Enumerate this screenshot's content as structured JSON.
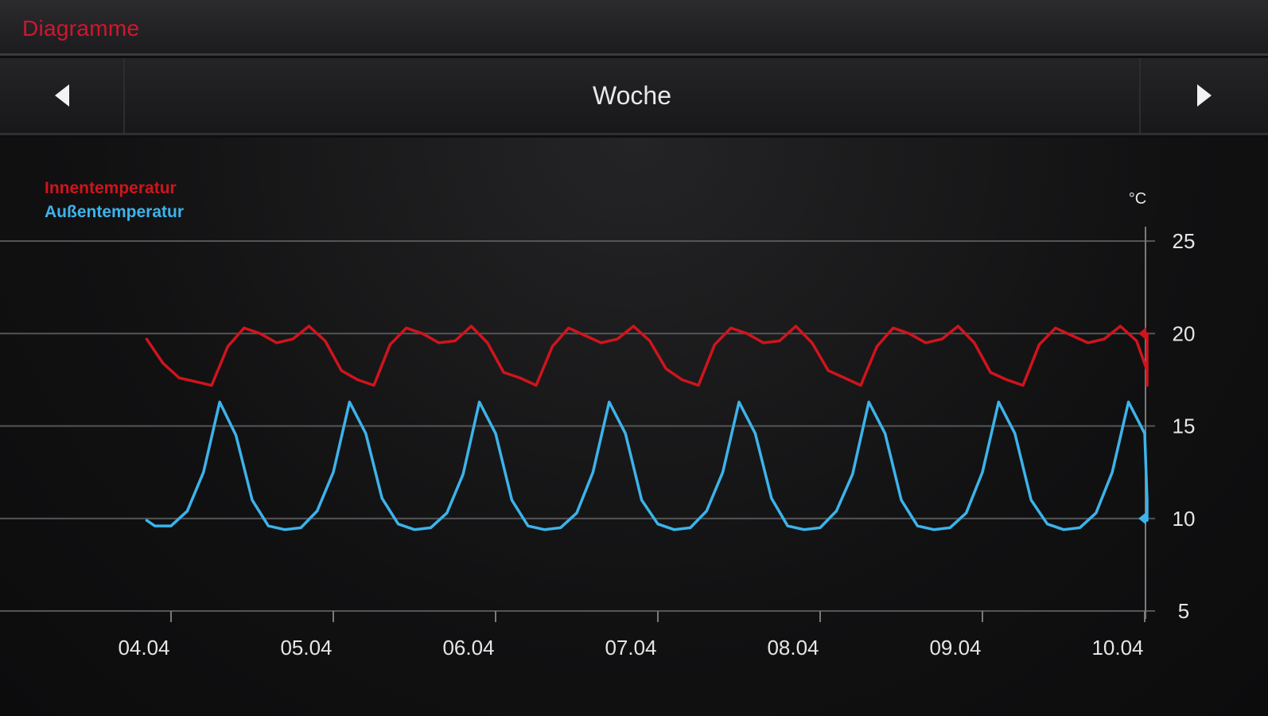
{
  "header": {
    "title": "Diagramme"
  },
  "nav": {
    "period_label": "Woche",
    "prev_icon": "chevron-left-icon",
    "next_icon": "chevron-right-icon"
  },
  "colors": {
    "accent": "#d1162f",
    "inside": "#d0141c",
    "outside": "#3db3ea"
  },
  "chart_data": {
    "type": "line",
    "unit_label": "°C",
    "x_tick_labels": [
      "04.04",
      "05.04",
      "06.04",
      "07.04",
      "08.04",
      "09.04",
      "10.04"
    ],
    "y_ticks": [
      5,
      10,
      15,
      20,
      25
    ],
    "ylim": [
      5,
      25
    ],
    "xlim": [
      -0.15,
      6.3
    ],
    "grid": true,
    "legend_position": "top-left",
    "series": [
      {
        "name": "Innentemperatur",
        "color": "#d0141c",
        "x": [
          -0.15,
          -0.05,
          0.05,
          0.15,
          0.25,
          0.35,
          0.45,
          0.55,
          0.65,
          0.75,
          0.85,
          0.95,
          1.05,
          1.15,
          1.25,
          1.35,
          1.45,
          1.55,
          1.65,
          1.75,
          1.85,
          1.95,
          2.05,
          2.15,
          2.25,
          2.35,
          2.45,
          2.55,
          2.65,
          2.75,
          2.85,
          2.95,
          3.05,
          3.15,
          3.25,
          3.35,
          3.45,
          3.55,
          3.65,
          3.75,
          3.85,
          3.95,
          4.05,
          4.15,
          4.25,
          4.35,
          4.45,
          4.55,
          4.65,
          4.75,
          4.85,
          4.95,
          5.05,
          5.15,
          5.25,
          5.35,
          5.45,
          5.55,
          5.65,
          5.75,
          5.85,
          5.95,
          6.05,
          6.15,
          6.25,
          6.3
        ],
        "values": [
          19.7,
          18.4,
          17.6,
          17.4,
          17.2,
          19.3,
          20.3,
          20.0,
          19.5,
          19.7,
          20.4,
          19.6,
          18.0,
          17.5,
          17.2,
          19.4,
          20.3,
          20.0,
          19.5,
          19.6,
          20.4,
          19.5,
          17.9,
          17.6,
          17.2,
          19.3,
          20.3,
          19.9,
          19.5,
          19.7,
          20.4,
          19.6,
          18.1,
          17.5,
          17.2,
          19.4,
          20.3,
          20.0,
          19.5,
          19.6,
          20.4,
          19.5,
          18.0,
          17.6,
          17.2,
          19.3,
          20.3,
          20.0,
          19.5,
          19.7,
          20.4,
          19.5,
          17.9,
          17.5,
          17.2,
          19.4,
          20.3,
          19.9,
          19.5,
          19.7,
          20.4,
          19.6,
          18.0,
          17.5,
          17.2,
          20.0
        ]
      },
      {
        "name": "Außentemperatur",
        "color": "#3db3ea",
        "x": [
          -0.15,
          -0.1,
          0.0,
          0.1,
          0.2,
          0.3,
          0.4,
          0.5,
          0.6,
          0.7,
          0.8,
          0.9,
          1.0,
          1.1,
          1.2,
          1.3,
          1.4,
          1.5,
          1.6,
          1.7,
          1.8,
          1.9,
          2.0,
          2.1,
          2.2,
          2.3,
          2.4,
          2.5,
          2.6,
          2.7,
          2.8,
          2.9,
          3.0,
          3.1,
          3.2,
          3.3,
          3.4,
          3.5,
          3.6,
          3.7,
          3.8,
          3.9,
          4.0,
          4.1,
          4.2,
          4.3,
          4.4,
          4.5,
          4.6,
          4.7,
          4.8,
          4.9,
          5.0,
          5.1,
          5.2,
          5.3,
          5.4,
          5.5,
          5.6,
          5.7,
          5.8,
          5.9,
          6.0,
          6.1,
          6.2,
          6.25
        ],
        "values": [
          9.9,
          9.6,
          9.6,
          10.4,
          12.5,
          16.3,
          14.5,
          11.0,
          9.6,
          9.4,
          9.5,
          10.4,
          12.5,
          16.3,
          14.6,
          11.1,
          9.7,
          9.4,
          9.5,
          10.3,
          12.4,
          16.3,
          14.6,
          11.0,
          9.6,
          9.4,
          9.5,
          10.3,
          12.5,
          16.3,
          14.6,
          11.0,
          9.7,
          9.4,
          9.5,
          10.4,
          12.5,
          16.3,
          14.6,
          11.1,
          9.6,
          9.4,
          9.5,
          10.4,
          12.4,
          16.3,
          14.6,
          11.0,
          9.6,
          9.4,
          9.5,
          10.3,
          12.5,
          16.3,
          14.6,
          11.0,
          9.7,
          9.4,
          9.5,
          10.3,
          12.5,
          16.3,
          14.6,
          11.0,
          9.9,
          10.0
        ]
      }
    ]
  }
}
